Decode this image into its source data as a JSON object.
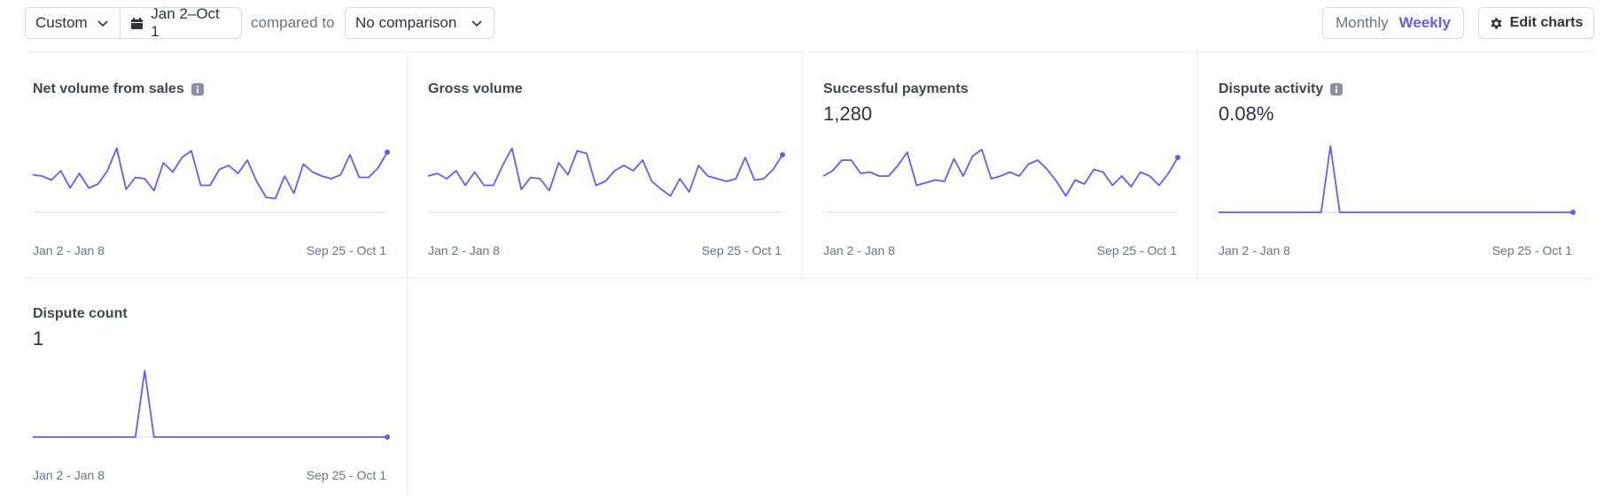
{
  "toolbar": {
    "range_preset": "Custom",
    "date_range": "Jan 2–Oct 1",
    "compared_to_label": "compared to",
    "comparison": "No comparison",
    "period_monthly": "Monthly",
    "period_weekly": "Weekly",
    "period_selected": "Weekly",
    "edit_charts": "Edit charts"
  },
  "colors": {
    "accent": "#635bff",
    "muted": "#6a7383",
    "border": "#d5dbe1"
  },
  "icons": [
    "chevron-down-icon",
    "calendar-icon",
    "gear-icon",
    "info-icon"
  ],
  "chart_data": [
    {
      "type": "line",
      "title": "Net volume from sales",
      "has_info_icon": true,
      "value": "",
      "x_start_label": "Jan 2 - Jan 8",
      "x_end_label": "Sep 25 - Oct 1",
      "values": [
        45,
        44,
        41,
        48,
        35,
        46,
        35,
        38,
        48,
        65,
        34,
        43,
        42,
        33,
        54,
        47,
        58,
        63,
        37,
        37,
        49,
        52,
        46,
        56,
        40,
        28,
        27,
        44,
        31,
        53,
        47,
        44,
        42,
        45,
        60,
        43,
        43,
        50,
        62
      ]
    },
    {
      "type": "line",
      "title": "Gross volume",
      "has_info_icon": false,
      "value": "",
      "x_start_label": "Jan 2 - Jan 8",
      "x_end_label": "Sep 25 - Oct 1",
      "values": [
        44,
        46,
        42,
        48,
        37,
        47,
        37,
        37,
        52,
        65,
        34,
        43,
        42,
        33,
        54,
        45,
        63,
        61,
        37,
        40,
        48,
        52,
        48,
        56,
        40,
        34,
        29,
        42,
        32,
        52,
        44,
        42,
        40,
        42,
        58,
        41,
        42,
        49,
        60
      ]
    },
    {
      "type": "line",
      "title": "Successful payments",
      "has_info_icon": false,
      "value": "1,280",
      "x_start_label": "Jan 2 - Jan 8",
      "x_end_label": "Sep 25 - Oct 1",
      "values": [
        44,
        48,
        56,
        56,
        46,
        47,
        44,
        44,
        52,
        62,
        37,
        39,
        41,
        40,
        57,
        44,
        59,
        64,
        42,
        44,
        47,
        44,
        53,
        56,
        49,
        40,
        29,
        41,
        38,
        49,
        47,
        37,
        44,
        36,
        47,
        44,
        37,
        46,
        58
      ]
    },
    {
      "type": "line",
      "title": "Dispute activity",
      "has_info_icon": true,
      "value": "0.08%",
      "x_start_label": "Jan 2 - Jan 8",
      "x_end_label": "Sep 25 - Oct 1",
      "values": [
        0,
        0,
        0,
        0,
        0,
        0,
        0,
        0,
        0,
        0,
        0,
        0,
        0.86,
        0,
        0,
        0,
        0,
        0,
        0,
        0,
        0,
        0,
        0,
        0,
        0,
        0,
        0,
        0,
        0,
        0,
        0,
        0,
        0,
        0,
        0,
        0,
        0,
        0,
        0
      ]
    },
    {
      "type": "line",
      "title": "Dispute count",
      "has_info_icon": false,
      "value": "1",
      "x_start_label": "Jan 2 - Jan 8",
      "x_end_label": "Sep 25 - Oct 1",
      "values": [
        0,
        0,
        0,
        0,
        0,
        0,
        0,
        0,
        0,
        0,
        0,
        0,
        1,
        0,
        0,
        0,
        0,
        0,
        0,
        0,
        0,
        0,
        0,
        0,
        0,
        0,
        0,
        0,
        0,
        0,
        0,
        0,
        0,
        0,
        0,
        0,
        0,
        0,
        0
      ]
    }
  ]
}
